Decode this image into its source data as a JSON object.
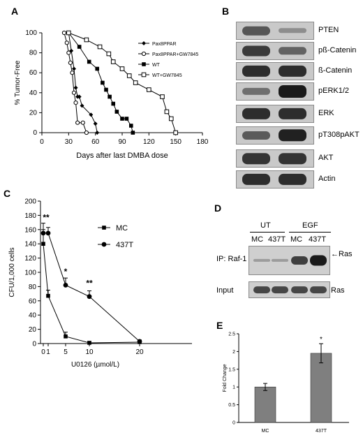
{
  "panels": {
    "A": "A",
    "B": "B",
    "C": "C",
    "D": "D",
    "E": "E"
  },
  "chart_data": [
    {
      "panel": "A",
      "type": "line",
      "xlabel": "Days after last DMBA dose",
      "ylabel": "% Tumor-Free",
      "xlim": [
        0,
        180
      ],
      "ylim": [
        0,
        100
      ],
      "xticks": [
        0,
        30,
        60,
        90,
        120,
        150,
        180
      ],
      "yticks": [
        0,
        20,
        40,
        60,
        80,
        100
      ],
      "legend_position": "top-right",
      "series": [
        {
          "name": "Pax8PPAR",
          "marker": "filled-diamond",
          "x": [
            25,
            30,
            33,
            36,
            38,
            40,
            42,
            45,
            55,
            60,
            62
          ],
          "y": [
            100,
            100,
            82,
            64,
            45,
            36,
            36,
            27,
            18,
            9,
            0
          ]
        },
        {
          "name": "Pax8PPAR+GW7845",
          "marker": "open-circle",
          "x": [
            25,
            28,
            30,
            32,
            34,
            36,
            38,
            40,
            46,
            50
          ],
          "y": [
            100,
            90,
            80,
            70,
            60,
            40,
            30,
            10,
            10,
            0
          ]
        },
        {
          "name": "WT",
          "marker": "filled-square",
          "x": [
            30,
            42,
            53,
            62,
            68,
            72,
            76,
            80,
            84,
            90,
            95,
            100,
            102
          ],
          "y": [
            100,
            86,
            71,
            64,
            50,
            43,
            36,
            29,
            21,
            14,
            14,
            7,
            0
          ]
        },
        {
          "name": "WT+GW7845",
          "marker": "open-square",
          "x": [
            30,
            50,
            65,
            75,
            80,
            90,
            98,
            105,
            120,
            135,
            140,
            145,
            150
          ],
          "y": [
            100,
            93,
            86,
            79,
            71,
            64,
            57,
            50,
            43,
            36,
            21,
            14,
            0
          ]
        }
      ]
    },
    {
      "panel": "C",
      "type": "line",
      "xlabel": "U0126 (µmol/L)",
      "ylabel": "CFU/1,000 cells",
      "xlim": [
        0,
        25
      ],
      "ylim": [
        0,
        200
      ],
      "xticks": [
        0,
        1,
        5,
        10,
        20
      ],
      "yticks": [
        0,
        20,
        40,
        60,
        80,
        100,
        120,
        140,
        160,
        180,
        200
      ],
      "legend_position": "top-right",
      "series": [
        {
          "name": "MC",
          "marker": "filled-square",
          "x": [
            0,
            1,
            5,
            10,
            20
          ],
          "y": [
            140,
            67,
            10,
            1,
            2
          ],
          "err": [
            20,
            8,
            6,
            2,
            1
          ]
        },
        {
          "name": "437T",
          "marker": "filled-circle",
          "x": [
            0,
            1,
            5,
            10,
            20
          ],
          "y": [
            155,
            155,
            82,
            66,
            3
          ],
          "err": [
            14,
            8,
            10,
            8,
            2
          ]
        }
      ],
      "annotations": [
        {
          "x": 0.5,
          "text": "**"
        },
        {
          "x": 5,
          "text": "*"
        },
        {
          "x": 10,
          "text": "**"
        }
      ]
    },
    {
      "panel": "E",
      "type": "bar",
      "ylabel": "Fold Change",
      "ylim": [
        0,
        2.5
      ],
      "yticks": [
        0,
        0.5,
        1,
        1.5,
        2,
        2.5
      ],
      "ytick_labels": [
        "0",
        "0.5",
        "1",
        "1.5",
        "2",
        "2.5"
      ],
      "categories": [
        "MC",
        "437T"
      ],
      "values": [
        1.0,
        1.95
      ],
      "errors": [
        0.1,
        0.27
      ],
      "significance": [
        "",
        "*"
      ],
      "bar_color": "#7f7f7f"
    }
  ],
  "westernB": {
    "rows": [
      {
        "label": "PTEN",
        "bands": [
          0.55,
          0.12
        ]
      },
      {
        "label": "pß-Catenin",
        "bands": [
          0.75,
          0.45
        ]
      },
      {
        "label": "ß-Catenin",
        "bands": [
          0.85,
          0.85
        ]
      },
      {
        "label": "pERK1/2",
        "bands": [
          0.35,
          1.0
        ]
      },
      {
        "label": "ERK",
        "bands": [
          0.85,
          0.85
        ]
      },
      {
        "label": "pT308pAKT",
        "bands": [
          0.5,
          0.95
        ]
      },
      {
        "label": "AKT",
        "bands": [
          0.8,
          0.8
        ]
      },
      {
        "label": "Actin",
        "bands": [
          0.85,
          0.85
        ]
      }
    ]
  },
  "westernD": {
    "group_ut": "UT",
    "group_egf": "EGF",
    "lanes": [
      "MC",
      "437T",
      "MC",
      "437T"
    ],
    "ip_label": "IP: Raf-1",
    "ras_arrow_label": "←Ras",
    "input_label": "Input",
    "ras_label": "Ras",
    "ip_bands": [
      0.1,
      0.1,
      0.75,
      1.0
    ],
    "input_bands": [
      0.85,
      0.85,
      0.85,
      0.85
    ]
  }
}
